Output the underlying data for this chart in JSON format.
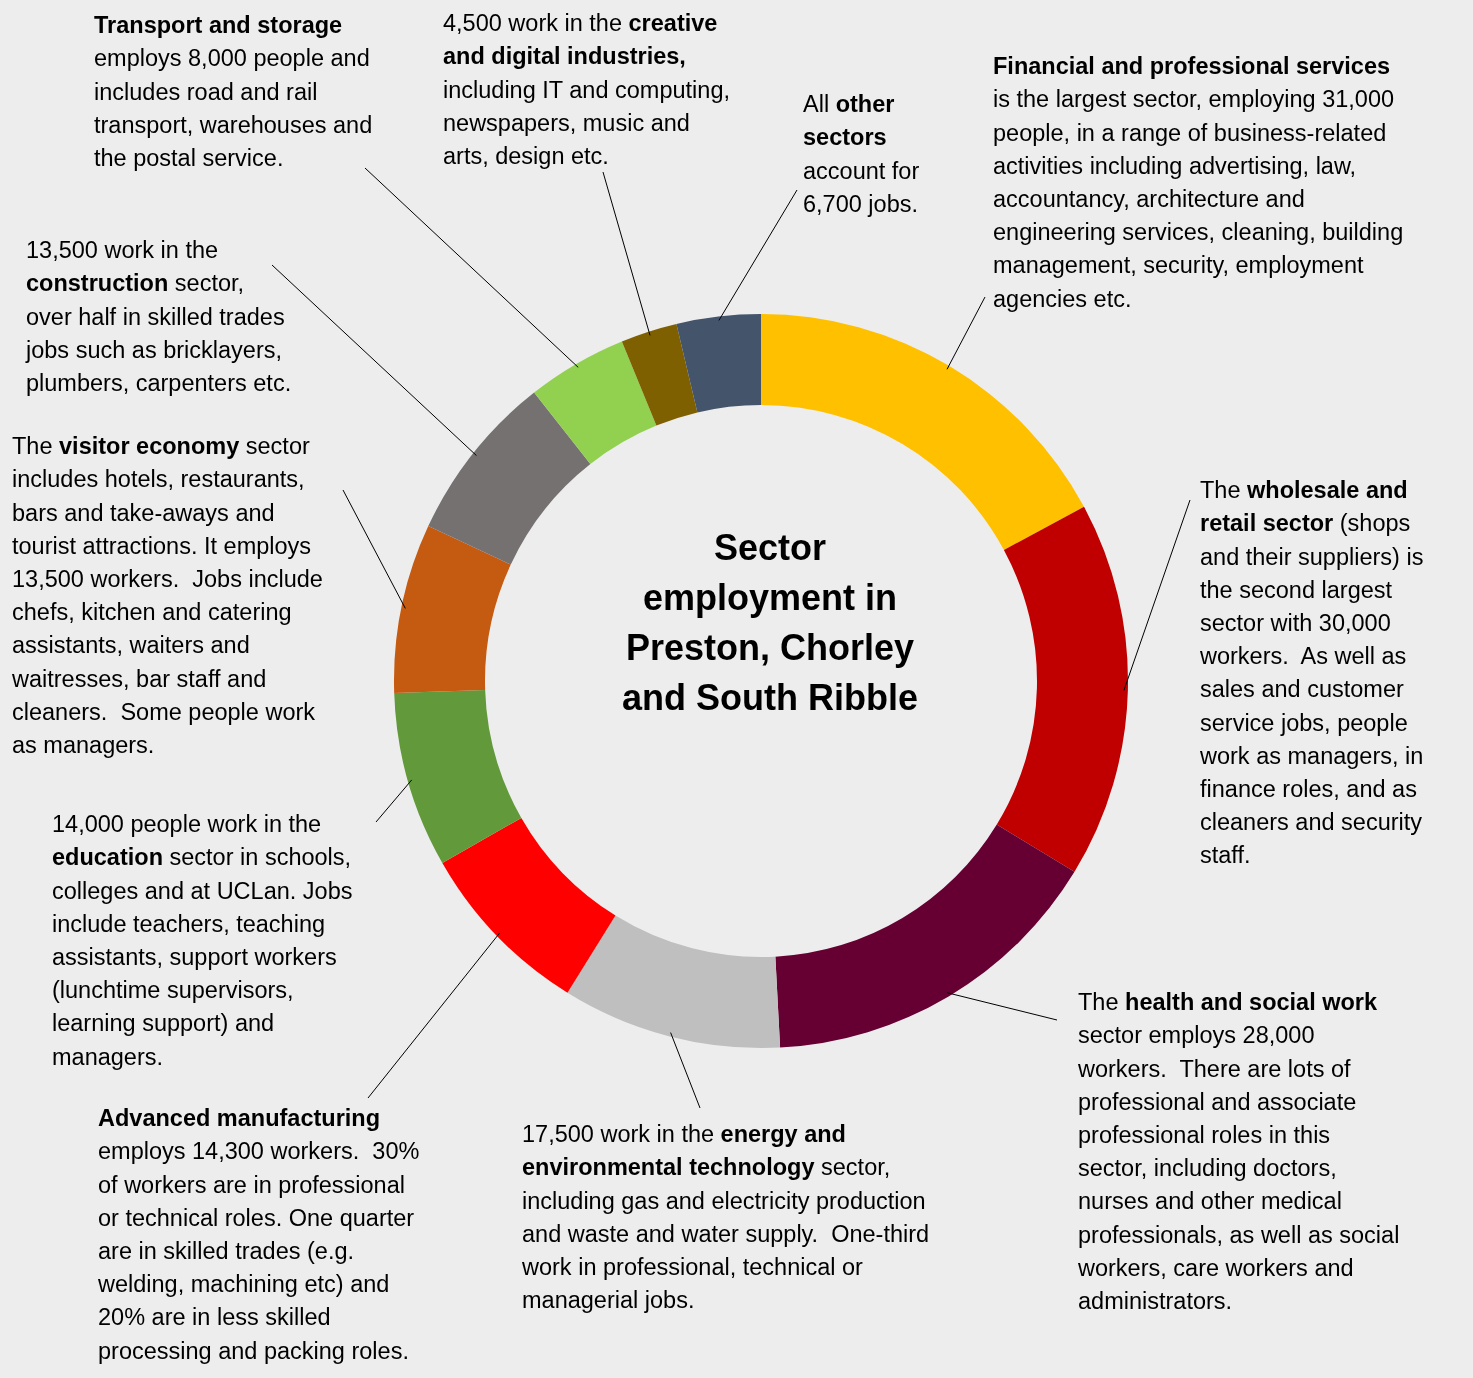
{
  "chart_data": {
    "type": "donut",
    "title": "Sector employment in Preston, Chorley and South Ribble",
    "categories": [
      "Financial and professional services is the largest sector, employing 31,000 people, in a range of business-related activities including advertising, law, accountancy, architecture and engineering services, cleaning, building management, security, employment agencies etc.",
      "The wholesale and retail sector (shops and their suppliers) is the second largest sector with 30,000 workers.  As well as sales and customer service jobs, people work as managers, in finance roles, and as cleaners and security staff.",
      "The health and social work sector employs 28,000 workers.  There are lots of professional and associate professional roles in this sector, including doctors, nurses and other medical professionals, as well as social workers, care workers and administrators.",
      "17,500 work in the energy and environmental technology sector, including gas and electricity production and waste and water supply.  One-third work in professional, technical or managerial jobs.",
      "Advanced manufacturing employs 14,300 workers.  30% of workers are in professional or technical roles. One quarter are in skilled trades (e.g. welding, machining etc) and 20% are in less skilled processing and packing roles.",
      "14,000 people work in the education sector in schools, colleges and at UCLan. Jobs include teachers, teaching assistants, support workers (lunchtime supervisors, learning support) and managers.",
      "The visitor economy sector includes hotels, restaurants, bars and take-aways and tourist attractions. It employs 13,500 workers.  Jobs include chefs, kitchen and catering assistants, waiters and waitresses, bar staff and cleaners.  Some people work as managers.",
      "13,500 work in the construction sector, over half in skilled trades jobs such as bricklayers, plumbers, carpenters etc.",
      "Transport and storage employs 8,000 people and includes road and rail transport, warehouses and the postal service.",
      "4,500 work in the creative and digital industries, including IT and computing, newspapers, music and arts, design etc.",
      "All other sectors account for 6,700 jobs."
    ],
    "values": [
      31000,
      30000,
      28000,
      17500,
      14300,
      14000,
      13500,
      13500,
      8000,
      4500,
      6700
    ],
    "colors": [
      "#ffc000",
      "#c00000",
      "#660033",
      "#bfbfbf",
      "#ff0000",
      "#629a3b",
      "#c55a11",
      "#767171",
      "#92d050",
      "#7f6000",
      "#44546a"
    ]
  }
}
